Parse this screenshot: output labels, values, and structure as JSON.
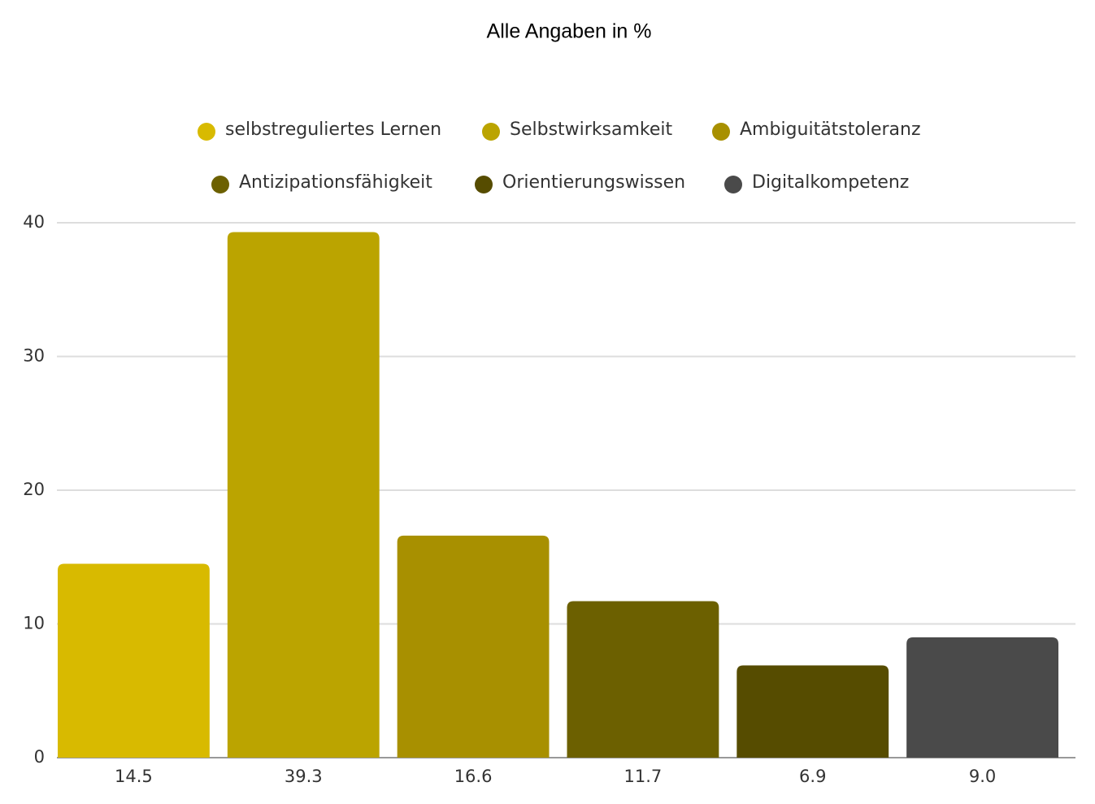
{
  "chart_data": {
    "type": "bar",
    "title": "Alle Angaben in %",
    "categories": [
      "selbstreguliertes Lernen",
      "Selbstwirksamkeit",
      "Ambiguitätstoleranz",
      "Antizipationsfähigkeit",
      "Orientierungswissen",
      "Digitalkompetenz"
    ],
    "values": [
      14.5,
      39.3,
      16.6,
      11.7,
      6.9,
      9.0
    ],
    "value_labels": [
      "14.5",
      "39.3",
      "16.6",
      "11.7",
      "6.9",
      "9.0"
    ],
    "colors": [
      "#d8ba00",
      "#bba400",
      "#a89000",
      "#6c6000",
      "#564c00",
      "#4a4a4a"
    ],
    "ylim": [
      0,
      40
    ],
    "yticks": [
      0,
      10,
      20,
      30,
      40
    ],
    "grid": true,
    "legend": "top"
  }
}
